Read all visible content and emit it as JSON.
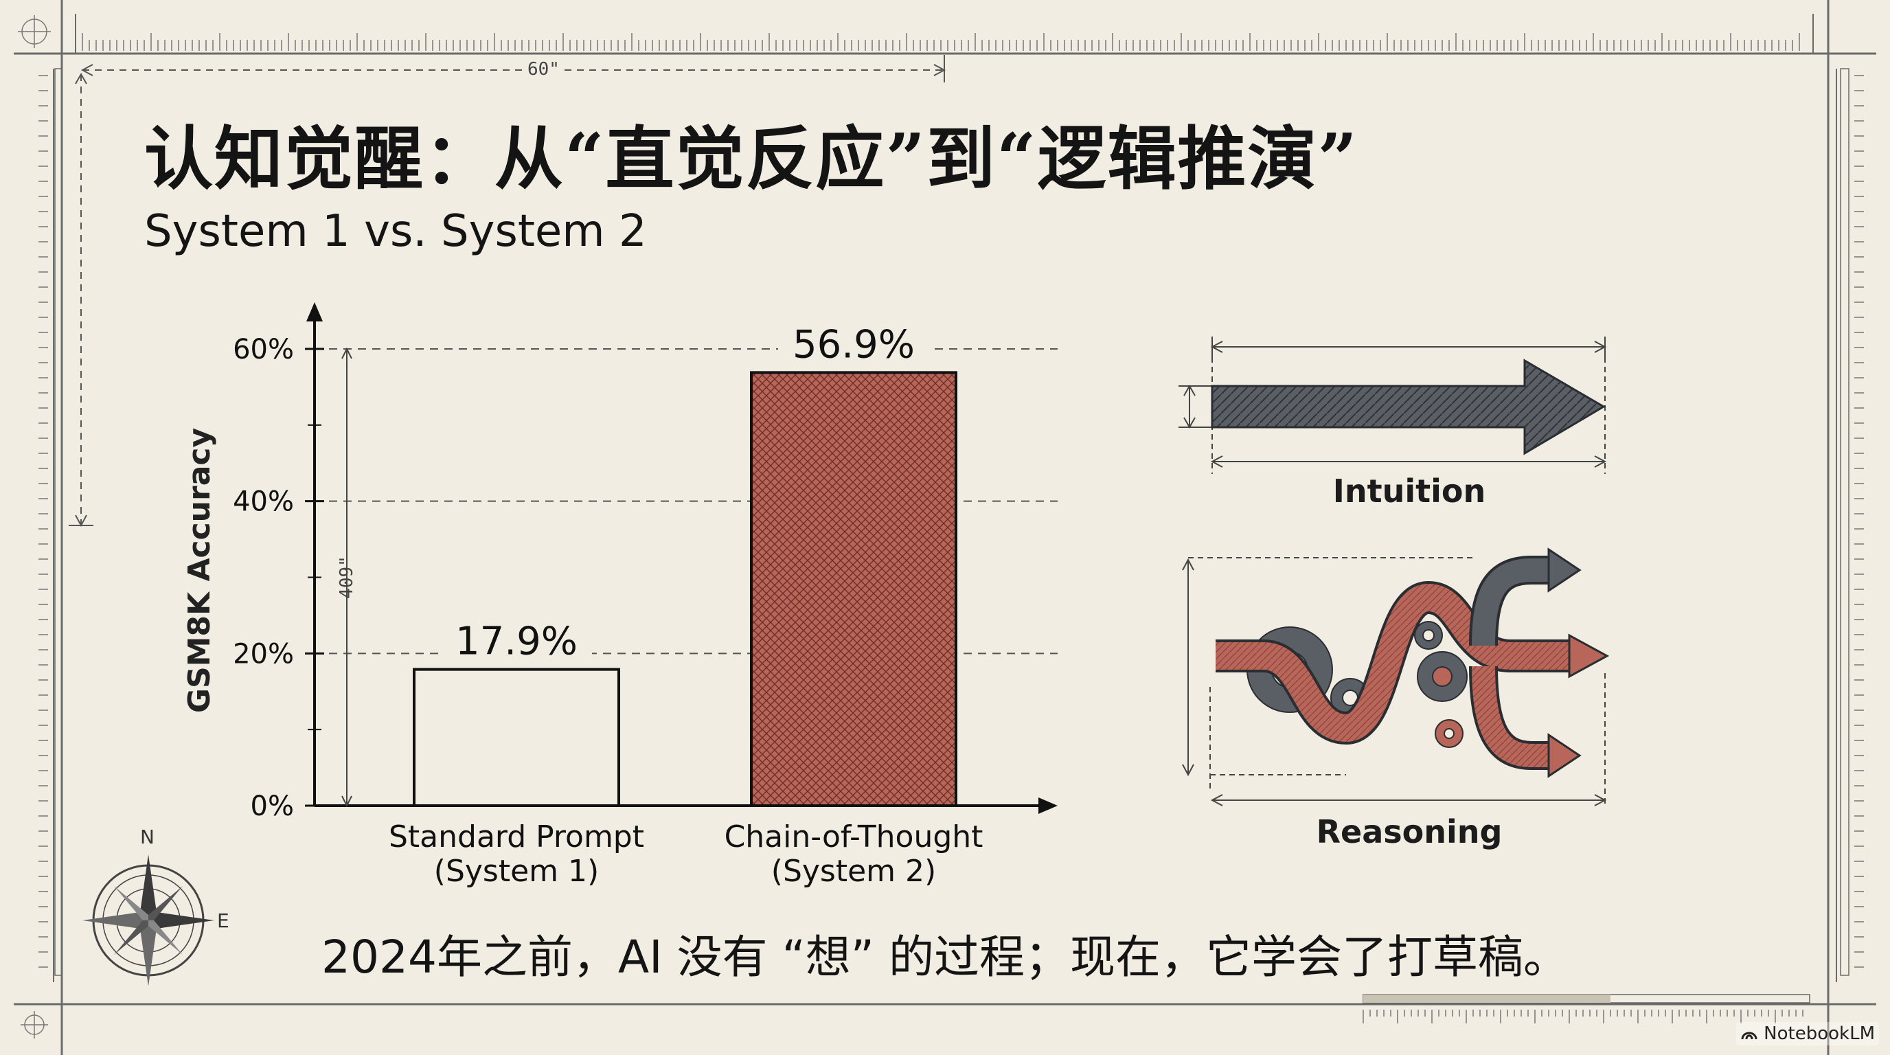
{
  "title": "认知觉醒：从“直觉反应”到“逻辑推演”",
  "subtitle": "System 1 vs. System 2",
  "caption": "2024年之前，AI 没有 “想” 的过程；现在，它学会了打草稿。",
  "frame": {
    "dimension_top": "60\"",
    "dimension_chart": "409\"",
    "compass_north": "N",
    "compass_east": "E"
  },
  "diagram": {
    "intuition_label": "Intuition",
    "reasoning_label": "Reasoning"
  },
  "watermark": "NotebookLM",
  "colors": {
    "background": "#f1ede2",
    "cot_bar": "#b8665a",
    "intuition_arrow": "#5a5f66",
    "reasoning_path": "#b8665a",
    "gear": "#5a5f66"
  },
  "chart_data": {
    "type": "bar",
    "categories": [
      "Standard Prompt\n(System 1)",
      "Chain-of-Thought\n(System 2)"
    ],
    "values": [
      17.9,
      56.9
    ],
    "value_labels": [
      "17.9%",
      "56.9%"
    ],
    "ylabel": "GSM8K Accuracy",
    "ylim": [
      0,
      60
    ],
    "yticks": [
      0,
      20,
      40,
      60
    ],
    "ytick_labels": [
      "0%",
      "20%",
      "40%",
      "60%"
    ],
    "grid": "dashed horizontal",
    "bar_styles": [
      "outline",
      "crosshatch"
    ]
  }
}
